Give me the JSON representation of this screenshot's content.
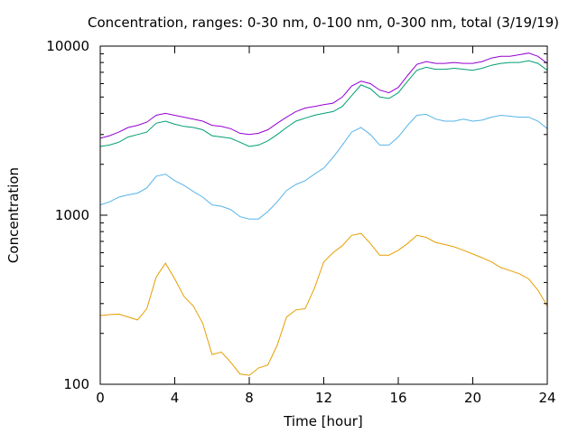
{
  "chart_data": {
    "type": "line",
    "title": "Concentration, ranges: 0-30 nm, 0-100 nm, 0-300 nm, total (3/19/19)",
    "xlabel": "Time [hour]",
    "ylabel": "Concentration",
    "xlim": [
      0,
      24
    ],
    "ylim": [
      100,
      10000
    ],
    "yscale": "log",
    "grid": false,
    "xticks": [
      0,
      4,
      8,
      12,
      16,
      20,
      24
    ],
    "yticks": [
      100,
      1000,
      10000
    ],
    "xtick_labels": [
      "0",
      "4",
      "8",
      "12",
      "16",
      "20",
      "24"
    ],
    "ytick_labels": [
      "100",
      "1000",
      "10000"
    ],
    "x": [
      0,
      0.5,
      1,
      1.5,
      2,
      2.5,
      3,
      3.5,
      4,
      4.5,
      5,
      5.5,
      6,
      6.5,
      7,
      7.5,
      8,
      8.5,
      9,
      9.5,
      10,
      10.5,
      11,
      11.5,
      12,
      12.5,
      13,
      13.5,
      14,
      14.5,
      15,
      15.5,
      16,
      16.5,
      17,
      17.5,
      18,
      18.5,
      19,
      19.5,
      20,
      20.5,
      21,
      21.5,
      22,
      22.5,
      23,
      23.5,
      24
    ],
    "series": [
      {
        "color": "#e69f00",
        "values": [
          255,
          258,
          260,
          250,
          240,
          280,
          430,
          520,
          420,
          330,
          290,
          230,
          150,
          155,
          135,
          115,
          113,
          125,
          130,
          170,
          250,
          275,
          280,
          370,
          530,
          600,
          660,
          760,
          780,
          680,
          580,
          580,
          620,
          680,
          760,
          740,
          690,
          670,
          650,
          620,
          590,
          560,
          530,
          490,
          470,
          450,
          420,
          360,
          290
        ]
      },
      {
        "color": "#56b4e9",
        "values": [
          1150,
          1200,
          1280,
          1320,
          1350,
          1450,
          1700,
          1750,
          1600,
          1500,
          1380,
          1280,
          1150,
          1130,
          1080,
          980,
          950,
          950,
          1050,
          1200,
          1400,
          1520,
          1600,
          1750,
          1900,
          2200,
          2600,
          3100,
          3300,
          3000,
          2600,
          2600,
          2900,
          3400,
          3900,
          3950,
          3700,
          3600,
          3600,
          3700,
          3600,
          3650,
          3800,
          3900,
          3850,
          3800,
          3800,
          3600,
          3250
        ]
      },
      {
        "color": "#009e73",
        "values": [
          2550,
          2600,
          2700,
          2900,
          3000,
          3100,
          3500,
          3600,
          3450,
          3350,
          3300,
          3200,
          2950,
          2900,
          2850,
          2700,
          2550,
          2600,
          2750,
          3000,
          3300,
          3600,
          3750,
          3900,
          4000,
          4100,
          4400,
          5100,
          5900,
          5600,
          5000,
          4900,
          5300,
          6200,
          7200,
          7500,
          7300,
          7300,
          7400,
          7300,
          7200,
          7400,
          7700,
          7900,
          8000,
          8000,
          8200,
          7900,
          7200
        ]
      },
      {
        "color": "#9400d3",
        "values": [
          2850,
          2950,
          3100,
          3300,
          3400,
          3550,
          3900,
          4000,
          3900,
          3800,
          3700,
          3600,
          3400,
          3350,
          3250,
          3050,
          3000,
          3050,
          3200,
          3500,
          3800,
          4100,
          4300,
          4400,
          4500,
          4600,
          5000,
          5800,
          6200,
          6000,
          5500,
          5300,
          5700,
          6700,
          7800,
          8100,
          7900,
          7900,
          8000,
          7900,
          7900,
          8100,
          8500,
          8700,
          8700,
          8900,
          9100,
          8700,
          7900
        ]
      }
    ]
  }
}
